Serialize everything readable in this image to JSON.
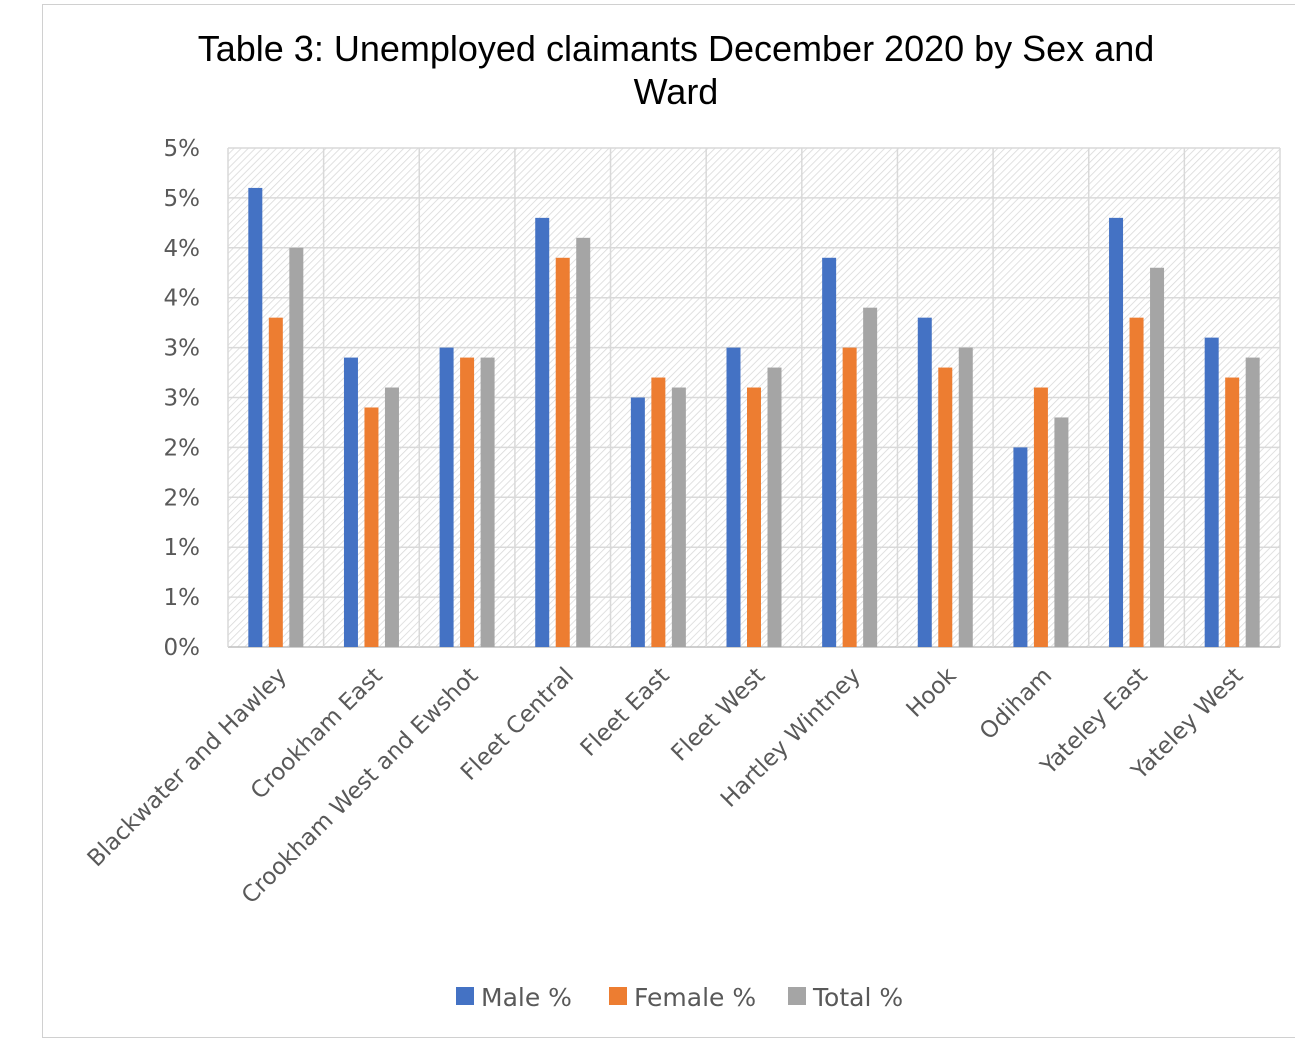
{
  "chart_data": {
    "type": "bar",
    "title": "Table 3: Unemployed claimants December 2020 by Sex and Ward",
    "title_lines": [
      "Table 3: Unemployed claimants December 2020 by Sex and",
      "Ward"
    ],
    "categories": [
      "Blackwater and Hawley",
      "Crookham East",
      "Crookham West and Ewshot",
      "Fleet Central",
      "Fleet East",
      "Fleet West",
      "Hartley Wintney",
      "Hook",
      "Odiham",
      "Yateley East",
      "Yateley West"
    ],
    "series": [
      {
        "name": "Male %",
        "color": "#4472c4",
        "values": [
          4.6,
          2.9,
          3.0,
          4.3,
          2.5,
          3.0,
          3.9,
          3.3,
          2.0,
          4.3,
          3.1
        ]
      },
      {
        "name": "Female %",
        "color": "#ed7d31",
        "values": [
          3.3,
          2.4,
          2.9,
          3.9,
          2.7,
          2.6,
          3.0,
          2.8,
          2.6,
          3.3,
          2.7
        ]
      },
      {
        "name": "Total %",
        "color": "#a5a5a5",
        "values": [
          4.0,
          2.6,
          2.9,
          4.1,
          2.6,
          2.8,
          3.4,
          3.0,
          2.3,
          3.8,
          2.9
        ]
      }
    ],
    "ylim": [
      0,
      5.0
    ],
    "yticks": [
      0,
      0.5,
      1.0,
      1.5,
      2.0,
      2.5,
      3.0,
      3.5,
      4.0,
      4.5,
      5.0
    ],
    "ytick_labels": [
      "0%",
      "1%",
      "1%",
      "2%",
      "2%",
      "3%",
      "3%",
      "4%",
      "4%",
      "5%",
      "5%"
    ],
    "xlabel": "",
    "ylabel": "",
    "grid": true,
    "legend_position": "bottom"
  }
}
